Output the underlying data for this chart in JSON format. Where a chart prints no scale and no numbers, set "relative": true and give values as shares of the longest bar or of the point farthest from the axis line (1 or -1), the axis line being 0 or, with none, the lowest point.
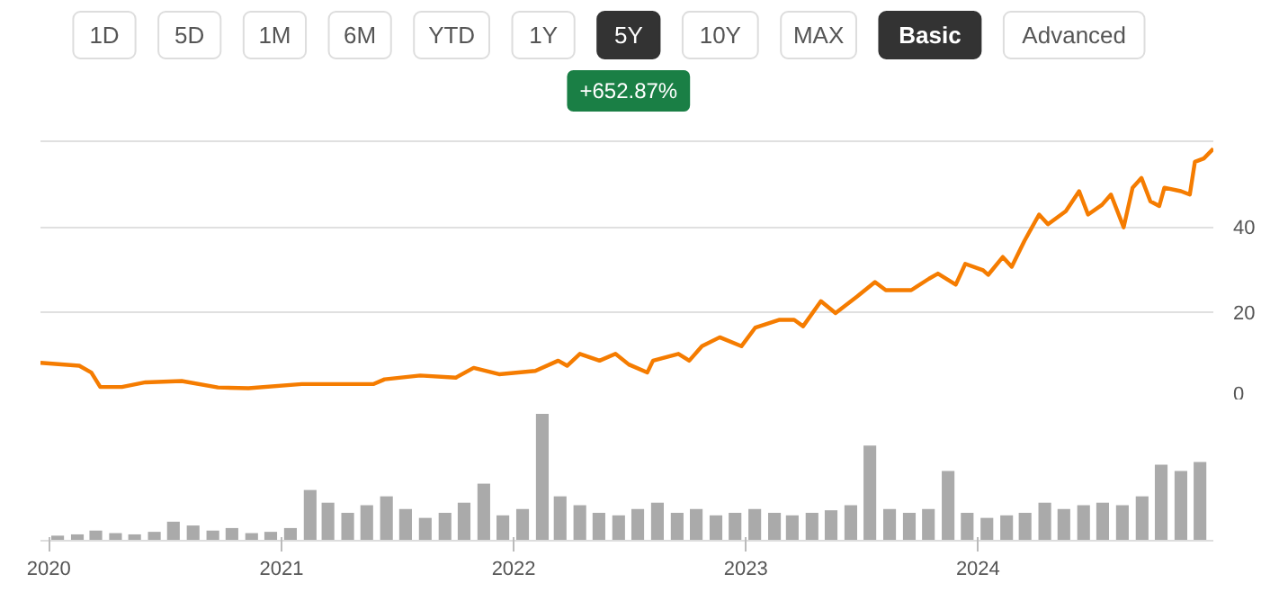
{
  "chart_data": [
    {
      "type": "line",
      "annotations": [
        "1D",
        "5D",
        "1M",
        "6M",
        "YTD",
        "1Y",
        "5Y",
        "10Y",
        "MAX",
        "Basic",
        "Advanced",
        "+652.87%"
      ],
      "x": [
        "2019-12-19",
        "2020-02-18",
        "2020-03-08",
        "2020-03-22",
        "2020-04-25",
        "2020-06-01",
        "2020-07-28",
        "2020-09-23",
        "2020-11-10",
        "2021-02-02",
        "2021-05-26",
        "2021-06-12",
        "2021-08-07",
        "2021-10-02",
        "2021-10-30",
        "2021-12-09",
        "2022-02-04",
        "2022-03-12",
        "2022-03-26",
        "2022-04-15",
        "2022-05-16",
        "2022-06-10",
        "2022-07-01",
        "2022-07-30",
        "2022-08-08",
        "2022-09-17",
        "2022-10-04",
        "2022-10-24",
        "2022-11-21",
        "2022-12-25",
        "2023-01-16",
        "2023-02-22",
        "2023-03-18",
        "2023-04-01",
        "2023-04-29",
        "2023-05-22",
        "2023-06-25",
        "2023-07-23",
        "2023-08-09",
        "2023-09-18",
        "2023-10-16",
        "2023-10-30",
        "2023-11-27",
        "2023-12-12",
        "2024-01-09",
        "2024-01-17",
        "2024-02-09",
        "2024-02-23",
        "2024-03-14",
        "2024-04-06",
        "2024-04-20",
        "2024-05-18",
        "2024-06-08",
        "2024-06-22",
        "2024-07-14",
        "2024-07-28",
        "2024-08-17",
        "2024-08-31",
        "2024-09-14",
        "2024-09-28",
        "2024-10-12",
        "2024-10-20",
        "2024-11-15",
        "2024-11-29",
        "2024-12-07",
        "2024-12-21",
        "2025-01-05"
      ],
      "series": [
        {
          "color": "#f57c00",
          "values": [
            8.0,
            7.3,
            5.7,
            2.3,
            2.3,
            3.4,
            3.7,
            2.2,
            2.0,
            3.0,
            3.0,
            4.1,
            5.0,
            4.5,
            6.8,
            5.3,
            6.1,
            8.5,
            7.3,
            10.1,
            8.5,
            10.1,
            7.6,
            5.7,
            8.5,
            10.1,
            8.5,
            11.9,
            14.0,
            11.9,
            16.3,
            18.1,
            18.1,
            16.6,
            22.5,
            19.7,
            23.6,
            27.0,
            25.1,
            25.1,
            27.8,
            29.0,
            26.4,
            31.3,
            29.8,
            28.7,
            32.9,
            30.6,
            36.7,
            42.9,
            40.6,
            43.7,
            48.4,
            42.9,
            45.2,
            47.6,
            39.9,
            49.2,
            51.5,
            46.0,
            44.9,
            49.2,
            48.4,
            47.6,
            55.3,
            56.1,
            58.4
          ]
        }
      ],
      "xlim": [
        "2019-12-19",
        "2025-01-05"
      ],
      "ylim": [
        0,
        61
      ],
      "yticks": [
        0,
        20,
        40,
        {
          "value": 60,
          "label": null
        }
      ],
      "grid": "y",
      "tick_labels": "y",
      "line_style": "solid",
      "marker": "none"
    },
    {
      "type": "bar",
      "relative": true,
      "x": [
        "2020-01-15",
        "2020-02-15",
        "2020-03-15",
        "2020-04-15",
        "2020-05-15",
        "2020-06-15",
        "2020-07-15",
        "2020-08-15",
        "2020-09-15",
        "2020-10-15",
        "2020-11-15",
        "2020-12-15",
        "2021-01-15",
        "2021-02-15",
        "2021-03-15",
        "2021-04-15",
        "2021-05-15",
        "2021-06-15",
        "2021-07-15",
        "2021-08-15",
        "2021-09-15",
        "2021-10-15",
        "2021-11-15",
        "2021-12-15",
        "2022-01-15",
        "2022-02-15",
        "2022-03-15",
        "2022-04-15",
        "2022-05-15",
        "2022-06-15",
        "2022-07-15",
        "2022-08-15",
        "2022-09-15",
        "2022-10-15",
        "2022-11-15",
        "2022-12-15",
        "2023-01-15",
        "2023-02-15",
        "2023-03-15",
        "2023-04-15",
        "2023-05-15",
        "2023-06-15",
        "2023-07-15",
        "2023-08-15",
        "2023-09-15",
        "2023-10-15",
        "2023-11-15",
        "2023-12-15",
        "2024-01-15",
        "2024-02-15",
        "2024-03-15",
        "2024-04-15",
        "2024-05-15",
        "2024-06-15",
        "2024-07-15",
        "2024-08-15",
        "2024-09-15",
        "2024-10-15",
        "2024-11-15",
        "2024-12-15"
      ],
      "series": [
        {
          "color": "#aaaaaa",
          "values": [
            0.04,
            0.05,
            0.08,
            0.06,
            0.05,
            0.07,
            0.15,
            0.12,
            0.08,
            0.1,
            0.06,
            0.07,
            0.1,
            0.4,
            0.3,
            0.22,
            0.28,
            0.35,
            0.25,
            0.18,
            0.22,
            0.3,
            0.45,
            0.2,
            0.25,
            1.0,
            0.35,
            0.28,
            0.22,
            0.2,
            0.25,
            0.3,
            0.22,
            0.25,
            0.2,
            0.22,
            0.25,
            0.22,
            0.2,
            0.22,
            0.24,
            0.28,
            0.75,
            0.25,
            0.22,
            0.25,
            0.55,
            0.22,
            0.18,
            0.2,
            0.22,
            0.3,
            0.25,
            0.28,
            0.3,
            0.28,
            0.35,
            0.6,
            0.55,
            0.62
          ]
        }
      ],
      "xlim": [
        "2019-12-19",
        "2025-01-05"
      ],
      "xticks": [
        {
          "value": "2020-01-01",
          "label": "2020"
        },
        {
          "value": "2021-01-01",
          "label": "2021"
        },
        {
          "value": "2022-01-01",
          "label": "2022"
        },
        {
          "value": "2023-01-01",
          "label": "2023"
        },
        {
          "value": "2024-01-01",
          "label": "2024"
        }
      ],
      "tick_labels": "x",
      "grid": false
    }
  ]
}
